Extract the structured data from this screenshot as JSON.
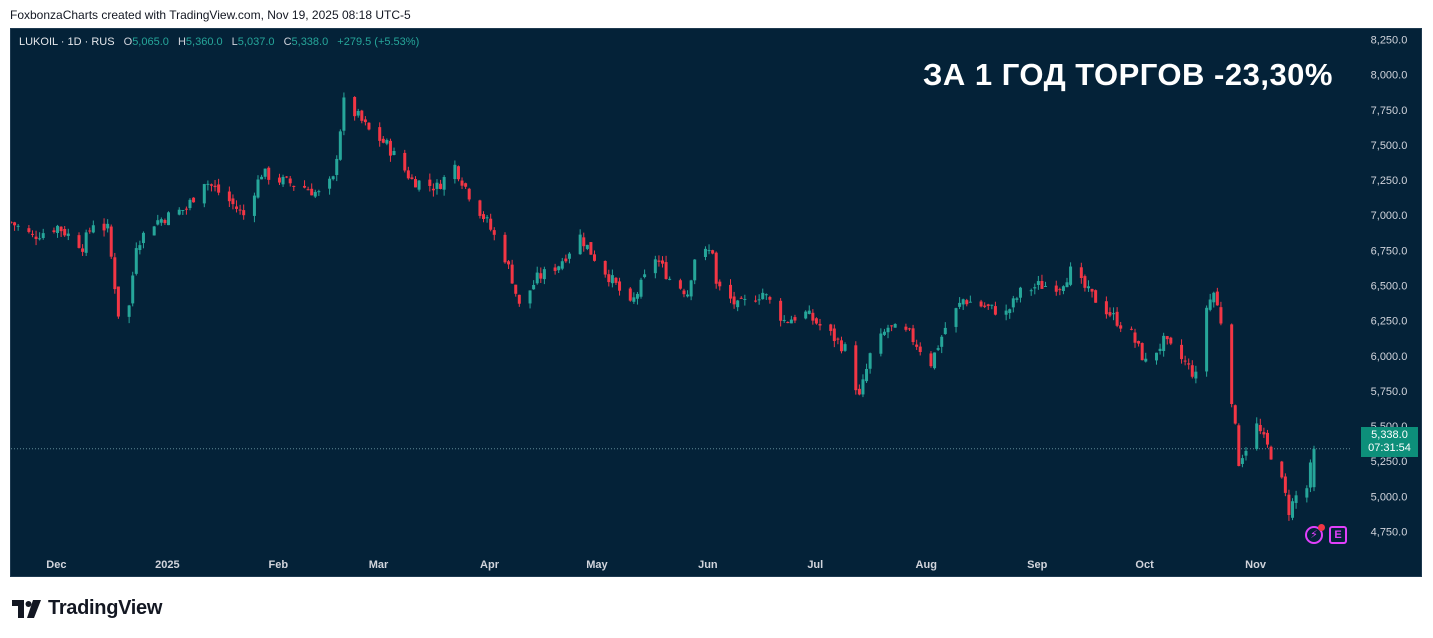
{
  "credit": "FoxbonzaCharts created with TradingView.com, Nov 19, 2025 08:18 UTC-5",
  "legend": {
    "symbol": "LUKOIL · 1D · RUS",
    "o_label": "O",
    "o": "5,065.0",
    "h_label": "H",
    "h": "5,360.0",
    "l_label": "L",
    "l": "5,037.0",
    "c_label": "C",
    "c": "5,338.0",
    "change": "+279.5 (+5.53%)"
  },
  "headline": "ЗА 1 ГОД ТОРГОВ -23,30%",
  "price_tag": {
    "price": "5,338.0",
    "countdown": "07:31:54"
  },
  "brand": "TradingView",
  "colors": {
    "background": "#042238",
    "up": "#26a69a",
    "down": "#f23645",
    "tag": "#0d8f7a"
  },
  "chart_data": {
    "type": "candlestick",
    "ylim": [
      4625,
      8325
    ],
    "y_ticks": [
      "8,250.0",
      "8,000.0",
      "7,750.0",
      "7,500.0",
      "7,250.0",
      "7,000.0",
      "6,750.0",
      "6,500.0",
      "6,250.0",
      "6,000.0",
      "5,750.0",
      "5,500.0",
      "5,250.0",
      "5,000.0",
      "4,750.0"
    ],
    "x_ticks": [
      "Dec",
      "2025",
      "Feb",
      "Mar",
      "Apr",
      "May",
      "Jun",
      "Jul",
      "Aug",
      "Sep",
      "Oct",
      "Nov"
    ],
    "last_price": 5338,
    "x_start": "2024-11-20",
    "x_end": "2025-11-19",
    "path": [
      [
        "2024-11-20",
        6950
      ],
      [
        "2024-11-26",
        6850
      ],
      [
        "2024-12-03",
        6920
      ],
      [
        "2024-12-10",
        6780
      ],
      [
        "2024-12-13",
        6950
      ],
      [
        "2024-12-17",
        6900
      ],
      [
        "2024-12-20",
        6300
      ],
      [
        "2024-12-23",
        6350
      ],
      [
        "2024-12-25",
        6800
      ],
      [
        "2024-12-30",
        6950
      ],
      [
        "2025-01-08",
        7050
      ],
      [
        "2025-01-13",
        7250
      ],
      [
        "2025-01-20",
        7100
      ],
      [
        "2025-01-24",
        7000
      ],
      [
        "2025-01-29",
        7300
      ],
      [
        "2025-02-03",
        7250
      ],
      [
        "2025-02-10",
        7200
      ],
      [
        "2025-02-14",
        7150
      ],
      [
        "2025-02-18",
        7250
      ],
      [
        "2025-02-21",
        7800
      ],
      [
        "2025-02-25",
        7700
      ],
      [
        "2025-02-28",
        7600
      ],
      [
        "2025-03-05",
        7500
      ],
      [
        "2025-03-12",
        7250
      ],
      [
        "2025-03-19",
        7200
      ],
      [
        "2025-03-24",
        7350
      ],
      [
        "2025-03-28",
        7150
      ],
      [
        "2025-04-02",
        6950
      ],
      [
        "2025-04-07",
        6700
      ],
      [
        "2025-04-09",
        6550
      ],
      [
        "2025-04-11",
        6350
      ],
      [
        "2025-04-16",
        6550
      ],
      [
        "2025-04-22",
        6650
      ],
      [
        "2025-04-28",
        6850
      ],
      [
        "2025-05-02",
        6700
      ],
      [
        "2025-05-08",
        6500
      ],
      [
        "2025-05-12",
        6350
      ],
      [
        "2025-05-19",
        6700
      ],
      [
        "2025-05-23",
        6550
      ],
      [
        "2025-05-28",
        6450
      ],
      [
        "2025-05-30",
        6700
      ],
      [
        "2025-06-04",
        6750
      ],
      [
        "2025-06-05",
        6500
      ],
      [
        "2025-06-11",
        6350
      ],
      [
        "2025-06-18",
        6450
      ],
      [
        "2025-06-24",
        6250
      ],
      [
        "2025-06-30",
        6300
      ],
      [
        "2025-07-07",
        6150
      ],
      [
        "2025-07-11",
        6050
      ],
      [
        "2025-07-15",
        5700
      ],
      [
        "2025-07-18",
        6000
      ],
      [
        "2025-07-23",
        6200
      ],
      [
        "2025-07-29",
        6150
      ],
      [
        "2025-08-04",
        5950
      ],
      [
        "2025-08-08",
        6200
      ],
      [
        "2025-08-13",
        6400
      ],
      [
        "2025-08-19",
        6350
      ],
      [
        "2025-08-25",
        6300
      ],
      [
        "2025-08-29",
        6450
      ],
      [
        "2025-09-03",
        6500
      ],
      [
        "2025-09-09",
        6500
      ],
      [
        "2025-09-12",
        6600
      ],
      [
        "2025-09-17",
        6450
      ],
      [
        "2025-09-23",
        6300
      ],
      [
        "2025-09-29",
        6150
      ],
      [
        "2025-10-03",
        5950
      ],
      [
        "2025-10-08",
        6100
      ],
      [
        "2025-10-14",
        5950
      ],
      [
        "2025-10-17",
        5850
      ],
      [
        "2025-10-20",
        6350
      ],
      [
        "2025-10-22",
        6450
      ],
      [
        "2025-10-24",
        6250
      ],
      [
        "2025-10-27",
        5700
      ],
      [
        "2025-10-29",
        5250
      ],
      [
        "2025-11-03",
        5500
      ],
      [
        "2025-11-05",
        5400
      ],
      [
        "2025-11-07",
        5300
      ],
      [
        "2025-11-10",
        5100
      ],
      [
        "2025-11-12",
        4900
      ],
      [
        "2025-11-14",
        5000
      ],
      [
        "2025-11-17",
        5059
      ],
      [
        "2025-11-19",
        5338
      ]
    ]
  }
}
